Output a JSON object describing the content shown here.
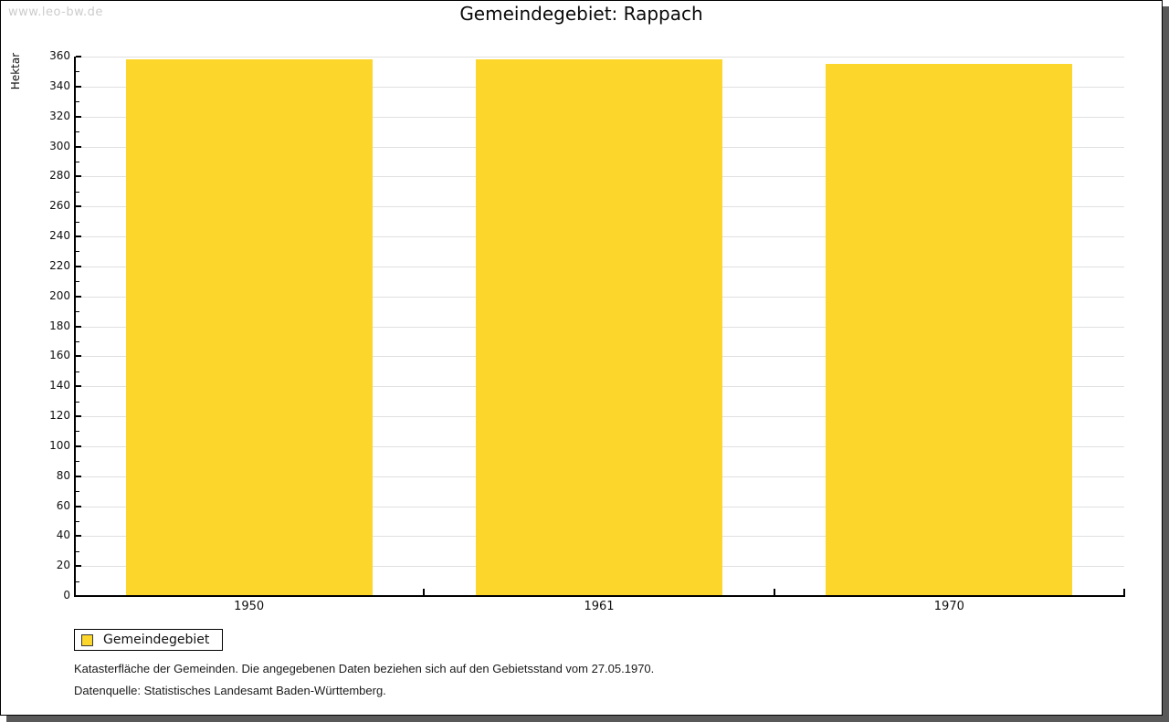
{
  "watermark": "www.leo-bw.de",
  "chart_data": {
    "type": "bar",
    "title": "Gemeindegebiet: Rappach",
    "categories": [
      "1950",
      "1961",
      "1970"
    ],
    "series": [
      {
        "name": "Gemeindegebiet",
        "values": [
          358,
          358,
          355
        ]
      }
    ],
    "xlabel": "",
    "ylabel": "Hektar",
    "ylim": [
      0,
      360
    ],
    "ytick_step": 20,
    "yminor_step": 10,
    "grid": true,
    "legend_position": "bottom-left",
    "bar_color": "#FDD62C"
  },
  "legend": {
    "items": [
      {
        "label": "Gemeindegebiet",
        "color": "#FDD62C"
      }
    ]
  },
  "footer": {
    "line1": "Katasterfläche der Gemeinden. Die angegebenen Daten beziehen sich auf den Gebietsstand vom 27.05.1970.",
    "line2": "Datenquelle: Statistisches Landesamt Baden-Württemberg."
  },
  "colors": {
    "bar": "#FDD62C",
    "gridline": "#E0E0E0",
    "axis": "#000000",
    "watermark": "#CCCCCC",
    "panel_shadow": "#595959",
    "text": "#111111"
  }
}
